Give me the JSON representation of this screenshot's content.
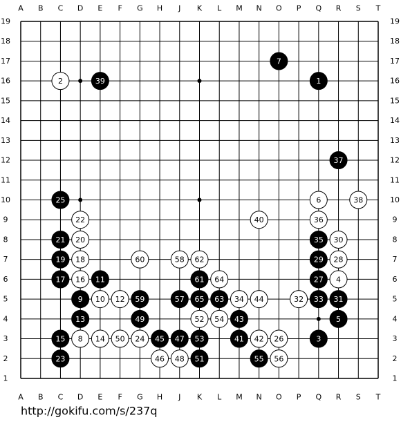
{
  "board": {
    "columns": [
      "A",
      "B",
      "C",
      "D",
      "E",
      "F",
      "G",
      "H",
      "J",
      "K",
      "L",
      "M",
      "N",
      "O",
      "P",
      "Q",
      "R",
      "S",
      "T"
    ],
    "rows": [
      19,
      18,
      17,
      16,
      15,
      14,
      13,
      12,
      11,
      10,
      9,
      8,
      7,
      6,
      5,
      4,
      3,
      2,
      1
    ],
    "stones": [
      {
        "move": 1,
        "color": "black",
        "col": "Q",
        "row": 16
      },
      {
        "move": 2,
        "color": "white",
        "col": "C",
        "row": 16
      },
      {
        "move": 3,
        "color": "black",
        "col": "Q",
        "row": 3
      },
      {
        "move": 4,
        "color": "white",
        "col": "R",
        "row": 6
      },
      {
        "move": 5,
        "color": "black",
        "col": "R",
        "row": 4
      },
      {
        "move": 6,
        "color": "white",
        "col": "Q",
        "row": 10
      },
      {
        "move": 7,
        "color": "black",
        "col": "O",
        "row": 17
      },
      {
        "move": 8,
        "color": "white",
        "col": "D",
        "row": 3
      },
      {
        "move": 9,
        "color": "black",
        "col": "D",
        "row": 5
      },
      {
        "move": 10,
        "color": "white",
        "col": "E",
        "row": 5
      },
      {
        "move": 11,
        "color": "black",
        "col": "E",
        "row": 6
      },
      {
        "move": 12,
        "color": "white",
        "col": "F",
        "row": 5
      },
      {
        "move": 13,
        "color": "black",
        "col": "D",
        "row": 4
      },
      {
        "move": 14,
        "color": "white",
        "col": "E",
        "row": 3
      },
      {
        "move": 15,
        "color": "black",
        "col": "C",
        "row": 3
      },
      {
        "move": 16,
        "color": "white",
        "col": "D",
        "row": 6
      },
      {
        "move": 17,
        "color": "black",
        "col": "C",
        "row": 6
      },
      {
        "move": 18,
        "color": "white",
        "col": "D",
        "row": 7
      },
      {
        "move": 19,
        "color": "black",
        "col": "C",
        "row": 7
      },
      {
        "move": 20,
        "color": "white",
        "col": "D",
        "row": 8
      },
      {
        "move": 21,
        "color": "black",
        "col": "C",
        "row": 8
      },
      {
        "move": 22,
        "color": "white",
        "col": "D",
        "row": 9
      },
      {
        "move": 23,
        "color": "black",
        "col": "C",
        "row": 2
      },
      {
        "move": 24,
        "color": "white",
        "col": "G",
        "row": 3
      },
      {
        "move": 25,
        "color": "black",
        "col": "C",
        "row": 10
      },
      {
        "move": 26,
        "color": "white",
        "col": "O",
        "row": 3
      },
      {
        "move": 27,
        "color": "black",
        "col": "Q",
        "row": 6
      },
      {
        "move": 28,
        "color": "white",
        "col": "R",
        "row": 7
      },
      {
        "move": 29,
        "color": "black",
        "col": "Q",
        "row": 7
      },
      {
        "move": 30,
        "color": "white",
        "col": "R",
        "row": 8
      },
      {
        "move": 31,
        "color": "black",
        "col": "R",
        "row": 5
      },
      {
        "move": 32,
        "color": "white",
        "col": "P",
        "row": 5
      },
      {
        "move": 33,
        "color": "black",
        "col": "Q",
        "row": 5
      },
      {
        "move": 34,
        "color": "white",
        "col": "M",
        "row": 5
      },
      {
        "move": 35,
        "color": "black",
        "col": "Q",
        "row": 8
      },
      {
        "move": 36,
        "color": "white",
        "col": "Q",
        "row": 9
      },
      {
        "move": 37,
        "color": "black",
        "col": "R",
        "row": 12
      },
      {
        "move": 38,
        "color": "white",
        "col": "S",
        "row": 10
      },
      {
        "move": 39,
        "color": "black",
        "col": "E",
        "row": 16
      },
      {
        "move": 40,
        "color": "white",
        "col": "N",
        "row": 9
      },
      {
        "move": 41,
        "color": "black",
        "col": "M",
        "row": 3
      },
      {
        "move": 42,
        "color": "white",
        "col": "N",
        "row": 3
      },
      {
        "move": 43,
        "color": "black",
        "col": "M",
        "row": 4
      },
      {
        "move": 44,
        "color": "white",
        "col": "N",
        "row": 5
      },
      {
        "move": 45,
        "color": "black",
        "col": "H",
        "row": 3
      },
      {
        "move": 46,
        "color": "white",
        "col": "H",
        "row": 2
      },
      {
        "move": 47,
        "color": "black",
        "col": "J",
        "row": 3
      },
      {
        "move": 48,
        "color": "white",
        "col": "J",
        "row": 2
      },
      {
        "move": 49,
        "color": "black",
        "col": "G",
        "row": 4
      },
      {
        "move": 50,
        "color": "white",
        "col": "F",
        "row": 3
      },
      {
        "move": 51,
        "color": "black",
        "col": "K",
        "row": 2
      },
      {
        "move": 52,
        "color": "white",
        "col": "K",
        "row": 4
      },
      {
        "move": 53,
        "color": "black",
        "col": "K",
        "row": 3
      },
      {
        "move": 54,
        "color": "white",
        "col": "L",
        "row": 4
      },
      {
        "move": 55,
        "color": "black",
        "col": "N",
        "row": 2
      },
      {
        "move": 56,
        "color": "white",
        "col": "O",
        "row": 2
      },
      {
        "move": 57,
        "color": "black",
        "col": "J",
        "row": 5
      },
      {
        "move": 58,
        "color": "white",
        "col": "J",
        "row": 7
      },
      {
        "move": 59,
        "color": "black",
        "col": "G",
        "row": 5
      },
      {
        "move": 60,
        "color": "white",
        "col": "G",
        "row": 7
      },
      {
        "move": 61,
        "color": "black",
        "col": "K",
        "row": 6
      },
      {
        "move": 62,
        "color": "white",
        "col": "K",
        "row": 7
      },
      {
        "move": 63,
        "color": "black",
        "col": "L",
        "row": 5
      },
      {
        "move": 64,
        "color": "white",
        "col": "L",
        "row": 6
      },
      {
        "move": 65,
        "color": "black",
        "col": "K",
        "row": 5
      }
    ]
  },
  "footer": {
    "url": "http://gokifu.com/s/237q"
  }
}
